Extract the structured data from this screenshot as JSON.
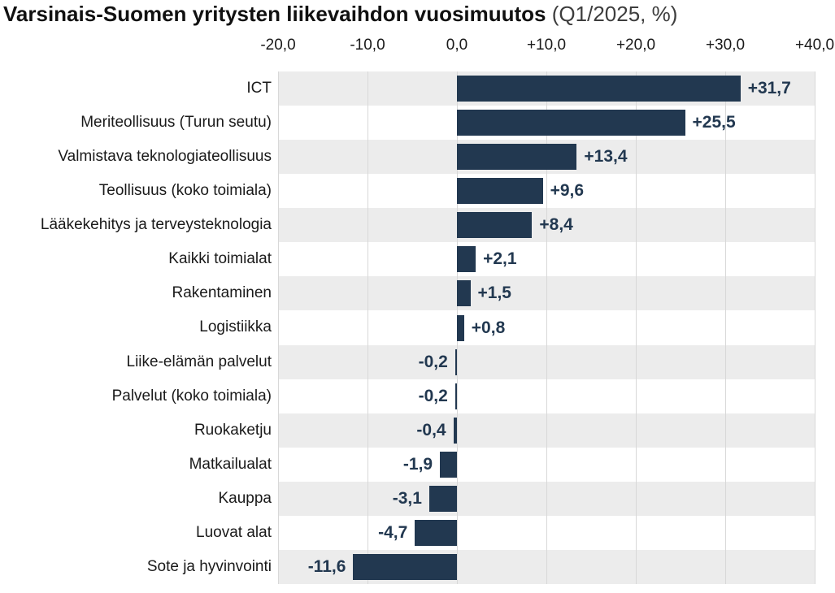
{
  "chart_data": {
    "type": "bar",
    "orientation": "horizontal",
    "title": "Varsinais-Suomen yritysten liikevaihdon vuosimuutos",
    "subtitle": "(Q1/2025, %)",
    "categories": [
      "ICT",
      "Meriteollisuus (Turun seutu)",
      "Valmistava teknologiateollisuus",
      "Teollisuus (koko toimiala)",
      "Lääkekehitys ja terveysteknologia",
      "Kaikki toimialat",
      "Rakentaminen",
      "Logistiikka",
      "Liike-elämän palvelut",
      "Palvelut (koko toimiala)",
      "Ruokaketju",
      "Matkailualat",
      "Kauppa",
      "Luovat alat",
      "Sote ja hyvinvointi"
    ],
    "values": [
      31.7,
      25.5,
      13.4,
      9.6,
      8.4,
      2.1,
      1.5,
      0.8,
      -0.2,
      -0.2,
      -0.4,
      -1.9,
      -3.1,
      -4.7,
      -11.6
    ],
    "value_labels": [
      "+31,7",
      "+25,5",
      "+13,4",
      "+9,6",
      "+8,4",
      "+2,1",
      "+1,5",
      "+0,8",
      "-0,2",
      "-0,2",
      "-0,4",
      "-1,9",
      "-3,1",
      "-4,7",
      "-11,6"
    ],
    "x_ticks": [
      {
        "value": -20,
        "label": "-20,0"
      },
      {
        "value": -10,
        "label": "-10,0"
      },
      {
        "value": 0,
        "label": "0,0"
      },
      {
        "value": 10,
        "label": "+10,0"
      },
      {
        "value": 20,
        "label": "+20,0"
      },
      {
        "value": 30,
        "label": "+30,0"
      },
      {
        "value": 40,
        "label": "+40,0"
      }
    ],
    "xlim": [
      -20,
      40
    ],
    "grid": true,
    "legend": "none",
    "colors": {
      "bar": "#223850",
      "value_label": "#223850",
      "band_odd": "#ececec",
      "band_even": "#ffffff",
      "gridline": "#d8d8d8",
      "title": "#111111",
      "subtitle": "#3d3d3d",
      "category_label": "#1a1a1a",
      "tick_label": "#1a1a1a"
    }
  }
}
